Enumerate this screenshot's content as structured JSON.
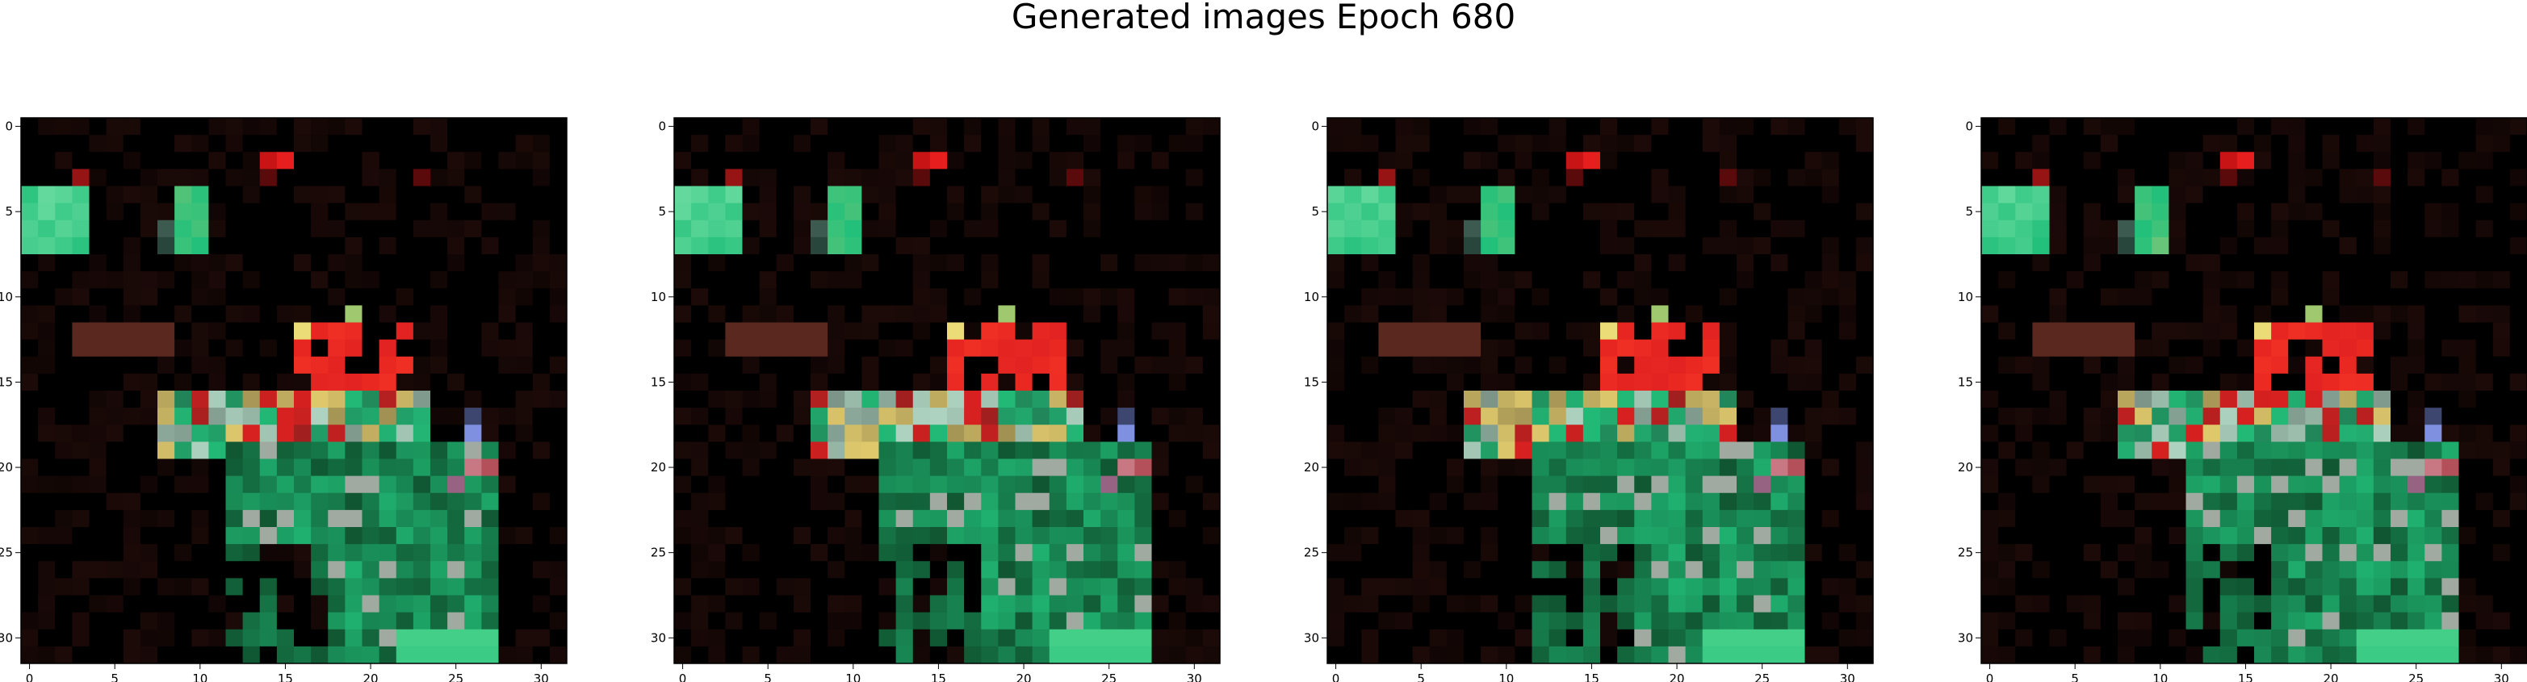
{
  "figure": {
    "title": "Generated images Epoch 680"
  },
  "axes": {
    "x_ticks": [
      "0",
      "5",
      "10",
      "15",
      "20",
      "25",
      "30"
    ],
    "y_ticks": [
      "0",
      "5",
      "10",
      "15",
      "20",
      "25",
      "30"
    ]
  },
  "panels": [
    {
      "name": "generated-image-1"
    },
    {
      "name": "generated-image-2"
    },
    {
      "name": "generated-image-3"
    },
    {
      "name": "generated-image-4"
    }
  ],
  "colors": {
    "background": "#ffffff",
    "image_base": "#000000",
    "green": "#22c07a",
    "red": "#e02020",
    "yellow": "#e8d070",
    "lavender": "#8090e0"
  }
}
